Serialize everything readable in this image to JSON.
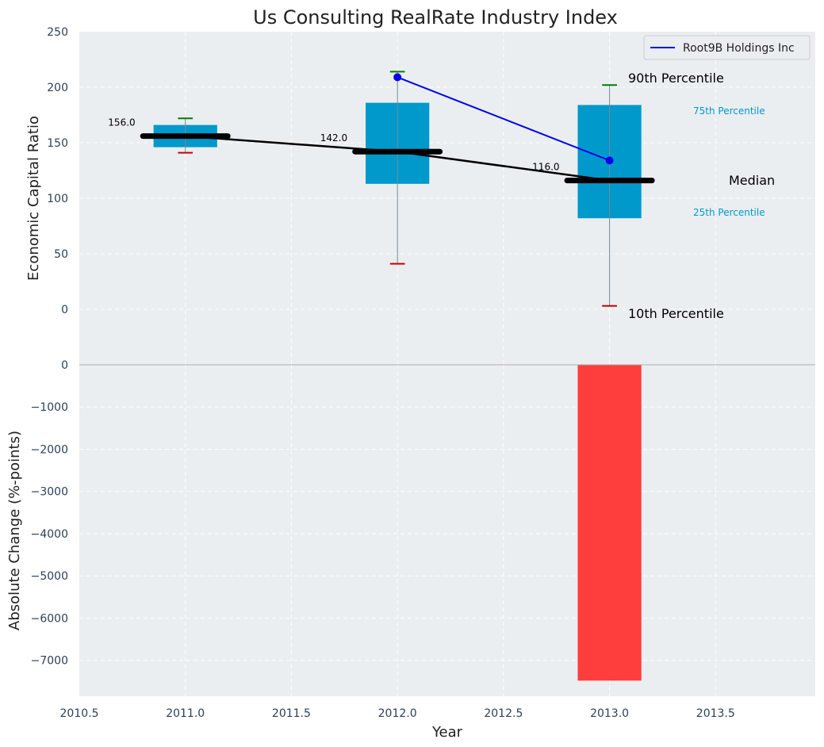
{
  "chart_data": {
    "type": "box",
    "title": "Us Consulting RealRate Industry Index",
    "xlabel": "Year",
    "xlim": [
      2010.5,
      2013.97
    ],
    "xticks": [
      2010.5,
      2011.0,
      2011.5,
      2012.0,
      2012.5,
      2013.0,
      2013.5
    ],
    "xtick_labels": [
      "2010.5",
      "2011.0",
      "2011.5",
      "2012.0",
      "2012.5",
      "2013.0",
      "2013.5"
    ],
    "top_panel": {
      "ylabel": "Economic Capital Ratio",
      "ylim": [
        -50,
        250
      ],
      "yticks": [
        0,
        50,
        100,
        150,
        200,
        250
      ],
      "ytick_labels": [
        "0",
        "50",
        "100",
        "150",
        "200",
        "250"
      ],
      "boxes": [
        {
          "year": 2011,
          "p10": 141,
          "p25": 146,
          "median": 156,
          "p75": 166,
          "p90": 172,
          "median_label": "156.0"
        },
        {
          "year": 2012,
          "p10": 41,
          "p25": 113,
          "median": 142,
          "p75": 186,
          "p90": 214,
          "median_label": "142.0"
        },
        {
          "year": 2013,
          "p10": 3,
          "p25": 82,
          "median": 116,
          "p75": 184,
          "p90": 202,
          "median_label": "116.0"
        }
      ],
      "company_series": {
        "name": "Root9B Holdings Inc",
        "x": [
          2012,
          2013
        ],
        "y": [
          209,
          134
        ],
        "color": "#0000ee"
      },
      "median_line_color": "#000000",
      "box_color": "#0099cc",
      "p90_cap_color": "#008000",
      "p10_cap_color": "#cc0000",
      "annotations": {
        "p90": "90th Percentile",
        "p75": "75th Percentile",
        "median": "Median",
        "p25": "25th Percentile",
        "p10": "10th Percentile"
      },
      "legend_position": "top-right"
    },
    "bottom_panel": {
      "type": "bar",
      "ylabel": "Absolute Change (%-points)",
      "ylim": [
        -7850,
        0
      ],
      "yticks": [
        0,
        -1000,
        -2000,
        -3000,
        -4000,
        -5000,
        -6000,
        -7000
      ],
      "ytick_labels": [
        "0",
        "−1000",
        "−2000",
        "−3000",
        "−4000",
        "−5000",
        "−6000",
        "−7000"
      ],
      "bars": [
        {
          "x": 2013,
          "value": -7480
        }
      ],
      "bar_color": "#ff3333"
    },
    "grid": true
  }
}
